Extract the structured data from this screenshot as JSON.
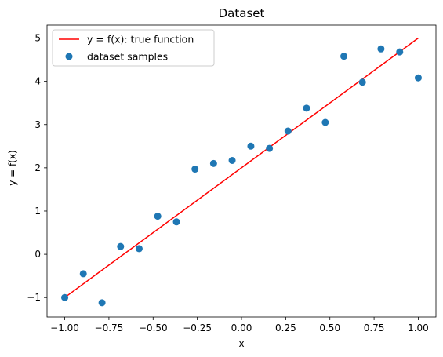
{
  "chart_data": {
    "type": "scatter",
    "title": "Dataset",
    "xlabel": "x",
    "ylabel": "y = f(x)",
    "xlim": [
      -1.1,
      1.1
    ],
    "ylim": [
      -1.45,
      5.3
    ],
    "xticks": [
      -1.0,
      -0.75,
      -0.5,
      -0.25,
      0.0,
      0.25,
      0.5,
      0.75,
      1.0
    ],
    "xtick_labels": [
      "−1.00",
      "−0.75",
      "−0.50",
      "−0.25",
      "0.00",
      "0.25",
      "0.50",
      "0.75",
      "1.00"
    ],
    "yticks": [
      -1,
      0,
      1,
      2,
      3,
      4,
      5
    ],
    "ytick_labels": [
      "−1",
      "0",
      "1",
      "2",
      "3",
      "4",
      "5"
    ],
    "grid": false,
    "legend_position": "top-left",
    "series": [
      {
        "name": "y = f(x): true function",
        "kind": "line",
        "color": "#ff0000",
        "x": [
          -1.0,
          1.0
        ],
        "y": [
          -1.0,
          5.0
        ]
      },
      {
        "name": "dataset samples",
        "kind": "scatter",
        "color": "#1f77b4",
        "x": [
          -1.0,
          -0.895,
          -0.789,
          -0.684,
          -0.579,
          -0.474,
          -0.368,
          -0.263,
          -0.158,
          -0.053,
          0.053,
          0.158,
          0.263,
          0.368,
          0.474,
          0.579,
          0.684,
          0.789,
          0.895,
          1.0
        ],
        "y": [
          -1.0,
          -0.45,
          -1.12,
          0.18,
          0.13,
          0.88,
          0.75,
          1.97,
          2.1,
          2.17,
          2.5,
          2.45,
          2.85,
          3.38,
          3.05,
          4.58,
          3.98,
          4.75,
          4.68,
          4.08
        ]
      }
    ]
  }
}
